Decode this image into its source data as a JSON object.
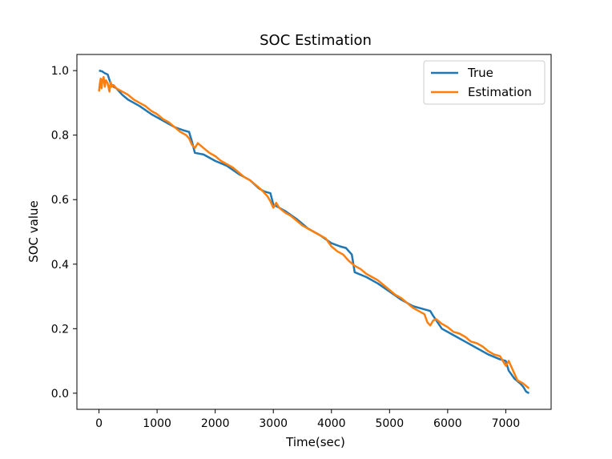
{
  "chart_data": {
    "type": "line",
    "title": "SOC Estimation",
    "xlabel": "Time(sec)",
    "ylabel": "SOC value",
    "xlim": [
      -380,
      7780
    ],
    "ylim": [
      -0.05,
      1.05
    ],
    "xticks": [
      0,
      1000,
      2000,
      3000,
      4000,
      5000,
      6000,
      7000
    ],
    "xtick_labels": [
      "0",
      "1000",
      "2000",
      "3000",
      "4000",
      "5000",
      "6000",
      "7000"
    ],
    "yticks": [
      0.0,
      0.2,
      0.4,
      0.6,
      0.8,
      1.0
    ],
    "ytick_labels": [
      "0.0",
      "0.2",
      "0.4",
      "0.6",
      "0.8",
      "1.0"
    ],
    "grid": false,
    "legend_position": "top-right",
    "series": [
      {
        "name": "True",
        "color": "#1f77b4",
        "x": [
          0,
          50,
          100,
          150,
          200,
          250,
          300,
          400,
          500,
          700,
          900,
          1100,
          1300,
          1450,
          1550,
          1600,
          1650,
          1800,
          2000,
          2200,
          2400,
          2600,
          2750,
          2850,
          2950,
          3000,
          3050,
          3200,
          3400,
          3600,
          3800,
          4000,
          4150,
          4250,
          4350,
          4400,
          4600,
          4800,
          5000,
          5200,
          5400,
          5600,
          5700,
          5750,
          5900,
          6100,
          6300,
          6500,
          6700,
          6900,
          7000,
          7050,
          7150,
          7250,
          7300,
          7350,
          7400
        ],
        "y": [
          1.0,
          0.998,
          0.992,
          0.988,
          0.96,
          0.95,
          0.945,
          0.925,
          0.91,
          0.89,
          0.865,
          0.845,
          0.825,
          0.815,
          0.81,
          0.78,
          0.745,
          0.74,
          0.72,
          0.705,
          0.68,
          0.66,
          0.635,
          0.625,
          0.62,
          0.585,
          0.58,
          0.565,
          0.54,
          0.51,
          0.49,
          0.465,
          0.455,
          0.45,
          0.43,
          0.375,
          0.36,
          0.34,
          0.315,
          0.29,
          0.27,
          0.26,
          0.255,
          0.24,
          0.2,
          0.18,
          0.16,
          0.14,
          0.12,
          0.105,
          0.1,
          0.07,
          0.045,
          0.03,
          0.02,
          0.005,
          0.0
        ]
      },
      {
        "name": "Estimation",
        "color": "#ff7f0e",
        "x": [
          0,
          15,
          30,
          45,
          60,
          80,
          100,
          120,
          150,
          180,
          200,
          220,
          250,
          300,
          350,
          400,
          500,
          600,
          700,
          800,
          900,
          1000,
          1100,
          1200,
          1300,
          1400,
          1500,
          1550,
          1600,
          1650,
          1700,
          1800,
          1900,
          2000,
          2100,
          2200,
          2300,
          2400,
          2500,
          2600,
          2700,
          2800,
          2900,
          2950,
          3000,
          3050,
          3100,
          3200,
          3300,
          3400,
          3500,
          3600,
          3700,
          3800,
          3900,
          4000,
          4100,
          4200,
          4300,
          4400,
          4500,
          4600,
          4700,
          4800,
          4900,
          5000,
          5100,
          5200,
          5300,
          5400,
          5500,
          5600,
          5650,
          5700,
          5750,
          5800,
          5900,
          6000,
          6100,
          6200,
          6300,
          6400,
          6500,
          6600,
          6700,
          6800,
          6900,
          6950,
          7000,
          7050,
          7100,
          7150,
          7200,
          7300,
          7400
        ],
        "y": [
          0.935,
          0.96,
          0.975,
          0.945,
          0.97,
          0.98,
          0.95,
          0.97,
          0.96,
          0.935,
          0.965,
          0.95,
          0.955,
          0.945,
          0.94,
          0.935,
          0.925,
          0.91,
          0.9,
          0.89,
          0.875,
          0.865,
          0.85,
          0.84,
          0.825,
          0.81,
          0.8,
          0.79,
          0.77,
          0.76,
          0.775,
          0.76,
          0.745,
          0.735,
          0.72,
          0.71,
          0.7,
          0.685,
          0.67,
          0.66,
          0.645,
          0.63,
          0.61,
          0.595,
          0.575,
          0.59,
          0.575,
          0.56,
          0.55,
          0.535,
          0.52,
          0.51,
          0.5,
          0.49,
          0.48,
          0.455,
          0.44,
          0.43,
          0.41,
          0.395,
          0.385,
          0.37,
          0.36,
          0.35,
          0.335,
          0.32,
          0.305,
          0.295,
          0.28,
          0.265,
          0.255,
          0.245,
          0.22,
          0.21,
          0.225,
          0.23,
          0.215,
          0.205,
          0.19,
          0.185,
          0.175,
          0.16,
          0.155,
          0.145,
          0.13,
          0.12,
          0.115,
          0.1,
          0.085,
          0.1,
          0.08,
          0.06,
          0.04,
          0.03,
          0.015
        ]
      }
    ]
  }
}
